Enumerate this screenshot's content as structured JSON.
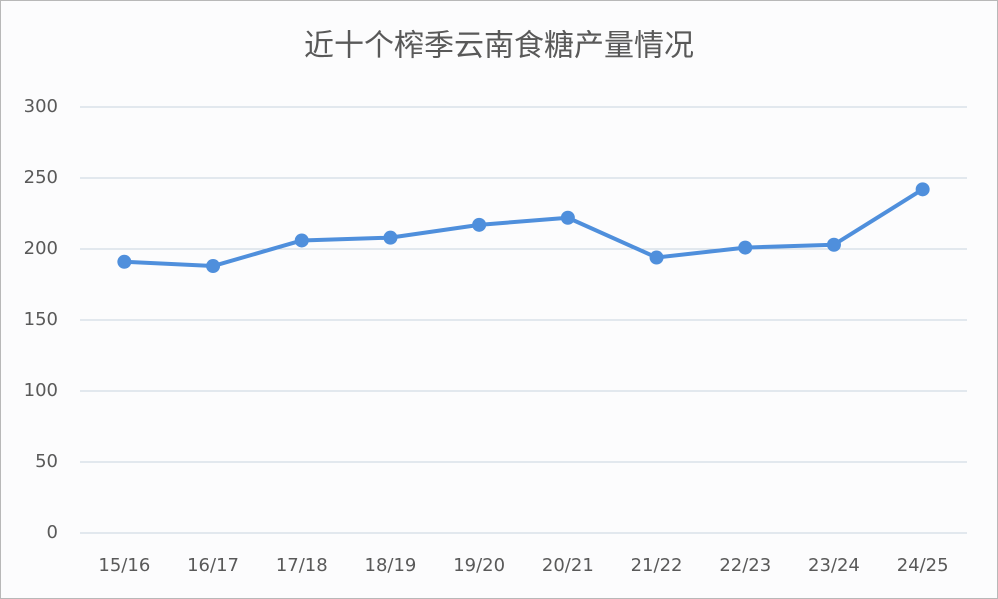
{
  "chart_data": {
    "type": "line",
    "title": "近十个榨季云南食糖产量情况",
    "categories": [
      "15/16",
      "16/17",
      "17/18",
      "18/19",
      "19/20",
      "20/21",
      "21/22",
      "22/23",
      "23/24",
      "24/25"
    ],
    "values": [
      191,
      188,
      206,
      208,
      217,
      222,
      194,
      201,
      203,
      242
    ],
    "color": "#4f8fdc",
    "ylim": [
      0,
      300
    ],
    "yticks": [
      0,
      50,
      100,
      150,
      200,
      250,
      300
    ],
    "grid": true
  }
}
